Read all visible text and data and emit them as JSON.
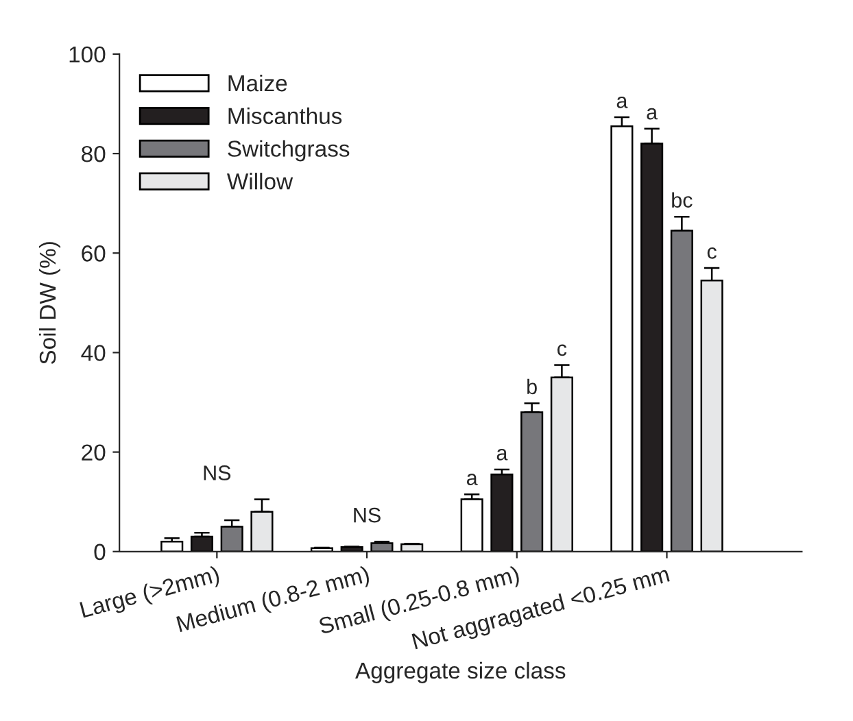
{
  "chart_data": {
    "type": "bar",
    "xlabel": "Aggregate size class",
    "ylabel": "Soil DW (%)",
    "categories": [
      "Large (>2mm)",
      "Medium (0.8-2 mm)",
      "Small (0.25-0.8 mm)",
      "Not aggragated <0.25 mm"
    ],
    "series": [
      {
        "name": "Maize",
        "color": "#ffffff",
        "values": [
          2,
          0.7,
          10.5,
          85.5
        ],
        "errors": [
          0.7,
          0.1,
          1,
          1.8
        ]
      },
      {
        "name": "Miscanthus",
        "color": "#231f20",
        "values": [
          3,
          0.9,
          15.5,
          82
        ],
        "errors": [
          0.8,
          0.1,
          1,
          3
        ]
      },
      {
        "name": "Switchgrass",
        "color": "#77777b",
        "values": [
          5,
          1.7,
          28,
          64.5
        ],
        "errors": [
          1.3,
          0.3,
          1.8,
          2.8
        ]
      },
      {
        "name": "Willow",
        "color": "#e6e7e8",
        "values": [
          8,
          1.5,
          35,
          54.5
        ],
        "errors": [
          2.5,
          0.1,
          2.5,
          2.5
        ]
      }
    ],
    "ylim": [
      0,
      100
    ],
    "yticks": [
      0,
      20,
      40,
      60,
      80,
      100
    ],
    "legend": "top left",
    "grid": false,
    "annotations": [
      "NS",
      "NS",
      "a",
      "a",
      "b",
      "c",
      "a",
      "a",
      "bc",
      "c"
    ]
  }
}
